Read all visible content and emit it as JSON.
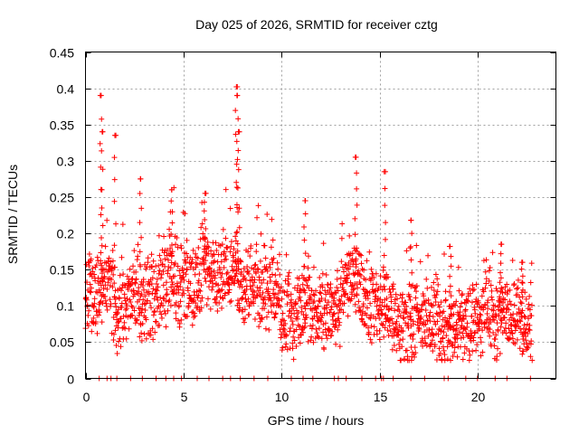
{
  "chart_data": {
    "type": "scatter",
    "title": "Day 025 of 2026, SRMTID for receiver cztg",
    "xlabel": "GPS time / hours",
    "ylabel": "SRMTID / TECUs",
    "xlim": [
      0,
      24
    ],
    "ylim": [
      0,
      0.45
    ],
    "xticks": [
      0,
      5,
      10,
      15,
      20
    ],
    "yticks": [
      0,
      0.05,
      0.1,
      0.15,
      0.2,
      0.25,
      0.3,
      0.35,
      0.4,
      0.45
    ],
    "xtick_labels": [
      "0",
      "5",
      "10",
      "15",
      "20"
    ],
    "ytick_labels": [
      "0",
      "0.05",
      "0.1",
      "0.15",
      "0.2",
      "0.25",
      "0.3",
      "0.35",
      "0.4",
      "0.45"
    ],
    "grid": true,
    "marker": "+",
    "color": "#ff0000",
    "series": [
      {
        "name": "SRMTID",
        "envelope": {
          "x": [
            0,
            0.5,
            1,
            1.5,
            2,
            2.5,
            3,
            3.5,
            4,
            4.5,
            5,
            5.5,
            6,
            6.5,
            7,
            7.5,
            8,
            8.5,
            9,
            9.5,
            10,
            10.5,
            11,
            11.5,
            12,
            12.5,
            13,
            13.5,
            14,
            14.5,
            15,
            15.5,
            16,
            16.5,
            17,
            17.5,
            18,
            18.5,
            19,
            19.5,
            20,
            20.5,
            21,
            21.5,
            22,
            22.5,
            22.8
          ],
          "y": [
            0.12,
            0.11,
            0.14,
            0.09,
            0.1,
            0.12,
            0.11,
            0.1,
            0.13,
            0.14,
            0.12,
            0.13,
            0.16,
            0.15,
            0.14,
            0.15,
            0.12,
            0.13,
            0.12,
            0.13,
            0.09,
            0.08,
            0.1,
            0.1,
            0.09,
            0.1,
            0.1,
            0.15,
            0.12,
            0.1,
            0.11,
            0.09,
            0.08,
            0.07,
            0.08,
            0.08,
            0.07,
            0.07,
            0.08,
            0.07,
            0.08,
            0.09,
            0.08,
            0.08,
            0.09,
            0.08,
            0.07
          ]
        },
        "peaks": [
          {
            "x": 0.8,
            "y": 0.39
          },
          {
            "x": 0.85,
            "y": 0.34
          },
          {
            "x": 1.5,
            "y": 0.335
          },
          {
            "x": 2.8,
            "y": 0.275
          },
          {
            "x": 4.4,
            "y": 0.26
          },
          {
            "x": 6.1,
            "y": 0.255
          },
          {
            "x": 7.7,
            "y": 0.402
          },
          {
            "x": 7.75,
            "y": 0.39
          },
          {
            "x": 7.8,
            "y": 0.34
          },
          {
            "x": 11.2,
            "y": 0.245
          },
          {
            "x": 13.8,
            "y": 0.305
          },
          {
            "x": 15.3,
            "y": 0.285
          },
          {
            "x": 16.6,
            "y": 0.218
          },
          {
            "x": 18.6,
            "y": 0.182
          },
          {
            "x": 21.2,
            "y": 0.185
          },
          {
            "x": 22.3,
            "y": 0.16
          }
        ],
        "zero_points_x": [
          0.7,
          1.1,
          1.3,
          1.6,
          2.3,
          2.9,
          3.6,
          4.1,
          4.5,
          4.9,
          5.7,
          6.3,
          7.0,
          7.4,
          7.9,
          8.6,
          9.3,
          10.5,
          11.1,
          11.6,
          12.7,
          12.9,
          13.3,
          14.1,
          14.8,
          15.1,
          15.2,
          15.7,
          16.6,
          17.3,
          18.3,
          18.5,
          19.4,
          20.0,
          20.9,
          21.5,
          22.7
        ]
      }
    ]
  }
}
